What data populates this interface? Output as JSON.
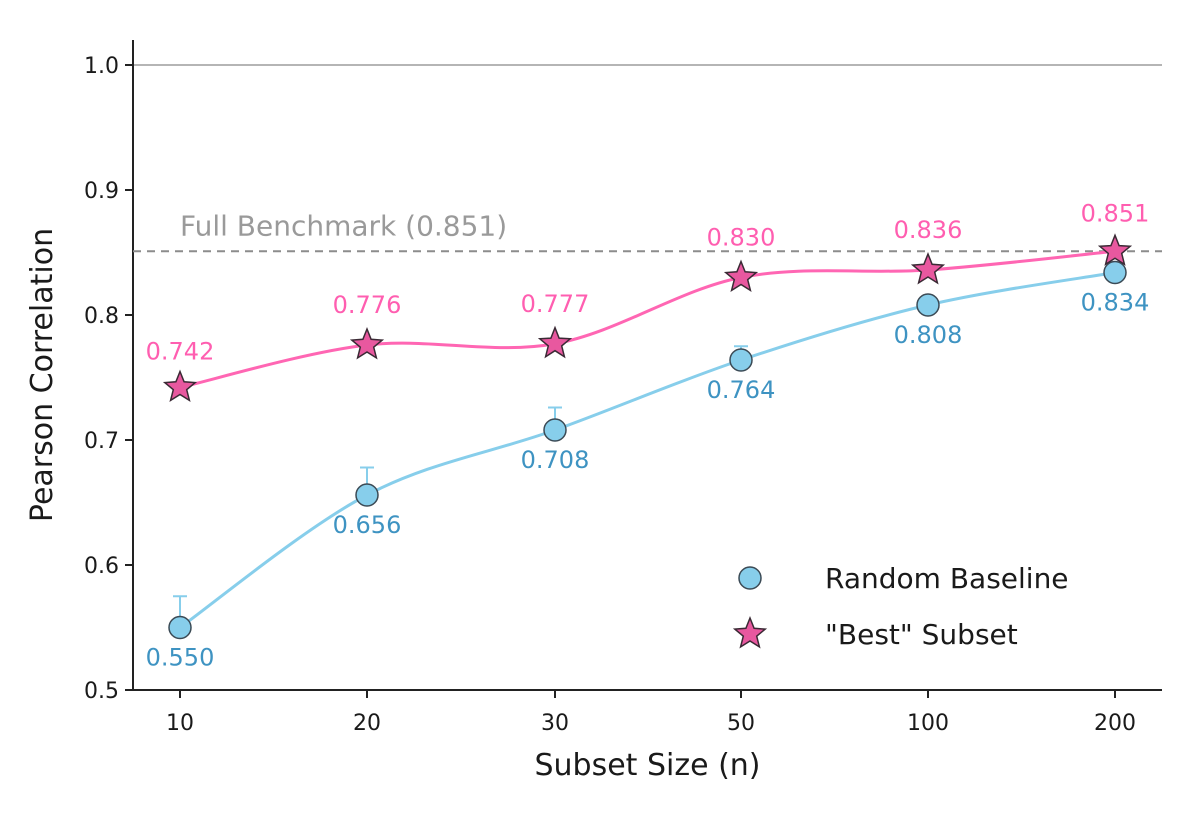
{
  "chart_data": {
    "type": "line",
    "categories": [
      "10",
      "20",
      "30",
      "50",
      "100",
      "200"
    ],
    "xlabel": "Subset Size (n)",
    "ylabel": "Pearson Correlation",
    "ylim": [
      0.5,
      1.0
    ],
    "yticks": [
      "0.5",
      "0.6",
      "0.7",
      "0.8",
      "0.9",
      "1.0"
    ],
    "grid": "horizontal line at 1.0 only",
    "reference_line": {
      "label": "Full Benchmark (0.851)",
      "value": 0.851
    },
    "series": [
      {
        "name": "Random Baseline",
        "marker": "circle",
        "color": "#87CEEB",
        "line_color": "#87CEEB",
        "label_color": "#3E93C2",
        "values": [
          0.55,
          0.656,
          0.708,
          0.764,
          0.808,
          0.834
        ],
        "value_labels": [
          "0.550",
          "0.656",
          "0.708",
          "0.764",
          "0.808",
          "0.834"
        ],
        "error_upper": [
          0.575,
          0.678,
          0.726,
          0.775,
          0.814,
          0.84
        ]
      },
      {
        "name": "\"Best\" Subset",
        "marker": "star",
        "color": "#E8589F",
        "line_color": "#FF66B3",
        "label_color": "#FF5EB0",
        "values": [
          0.742,
          0.776,
          0.777,
          0.83,
          0.836,
          0.851
        ],
        "value_labels": [
          "0.742",
          "0.776",
          "0.777",
          "0.830",
          "0.836",
          "0.851"
        ]
      }
    ],
    "legend": {
      "placement": "bottom-right"
    }
  }
}
